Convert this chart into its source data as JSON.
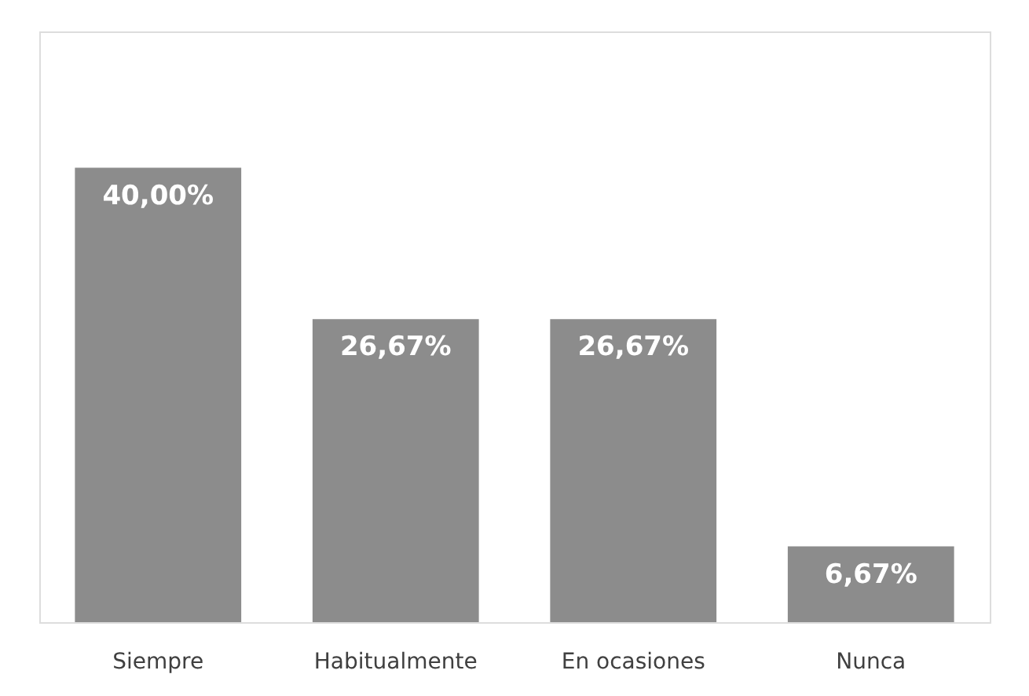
{
  "chart_data": {
    "type": "bar",
    "categories": [
      "Siempre",
      "Habitualmente",
      "En ocasiones",
      "Nunca"
    ],
    "values": [
      40,
      26.67,
      26.67,
      6.67
    ],
    "value_labels": [
      "40,00%",
      "26,67%",
      "26,67%",
      "6,67%"
    ],
    "color": "#8c8c8c",
    "grid": false
  }
}
